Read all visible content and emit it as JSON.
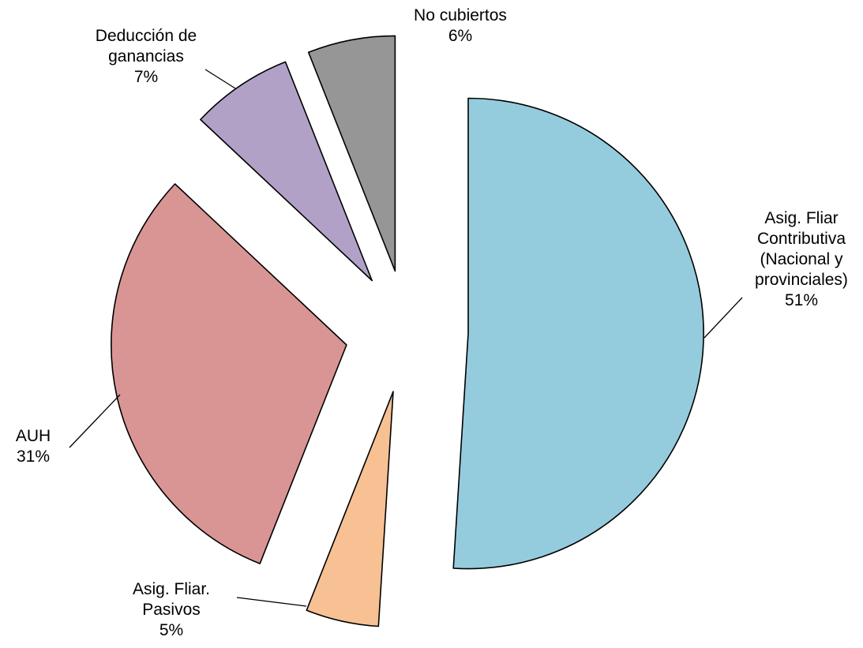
{
  "chart_data": {
    "type": "pie",
    "title": "",
    "slices": [
      {
        "label_lines": [
          "Asig. Fliar",
          "Contributiva",
          "(Nacional y",
          "provinciales)"
        ],
        "pct_label": "51%",
        "value": 51,
        "color": "#95CCDD",
        "exploded": true
      },
      {
        "label_lines": [
          "Asig. Fliar.",
          "Pasivos"
        ],
        "pct_label": "5%",
        "value": 5,
        "color": "#F7C194",
        "exploded": true
      },
      {
        "label_lines": [
          "AUH"
        ],
        "pct_label": "31%",
        "value": 31,
        "color": "#D99594",
        "exploded": true
      },
      {
        "label_lines": [
          "Deducción de",
          "ganancias"
        ],
        "pct_label": "7%",
        "value": 7,
        "color": "#B2A1C7",
        "exploded": true
      },
      {
        "label_lines": [
          "No cubiertos"
        ],
        "pct_label": "6%",
        "value": 6,
        "color": "#969696",
        "exploded": true
      }
    ],
    "start_angle": "12 o'clock",
    "direction": "clockwise",
    "outline_color": "#000000"
  }
}
